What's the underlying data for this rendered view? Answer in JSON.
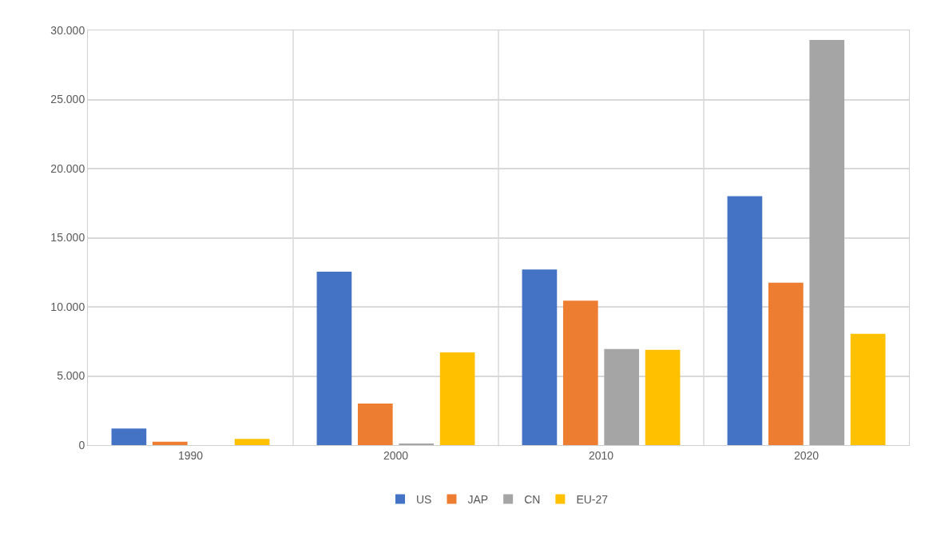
{
  "chart_data": {
    "type": "bar",
    "categories": [
      "1990",
      "2000",
      "2010",
      "2020"
    ],
    "series": [
      {
        "name": "US",
        "color": "#4472c4",
        "values": [
          1200,
          12550,
          12700,
          18000
        ]
      },
      {
        "name": "JAP",
        "color": "#ed7d31",
        "values": [
          250,
          3000,
          10450,
          11750
        ]
      },
      {
        "name": "CN",
        "color": "#a5a5a5",
        "values": [
          0,
          100,
          6950,
          29300
        ]
      },
      {
        "name": "EU-27",
        "color": "#ffc000",
        "values": [
          450,
          6700,
          6900,
          8050
        ]
      }
    ],
    "ylim": [
      0,
      30000
    ],
    "yticks": [
      {
        "value": 0,
        "label": "0"
      },
      {
        "value": 5000,
        "label": "5.000"
      },
      {
        "value": 10000,
        "label": "10.000"
      },
      {
        "value": 15000,
        "label": "15.000"
      },
      {
        "value": 20000,
        "label": "20.000"
      },
      {
        "value": 25000,
        "label": "25.000"
      },
      {
        "value": 30000,
        "label": "30.000"
      }
    ],
    "grid": true,
    "legend": "bottom"
  }
}
